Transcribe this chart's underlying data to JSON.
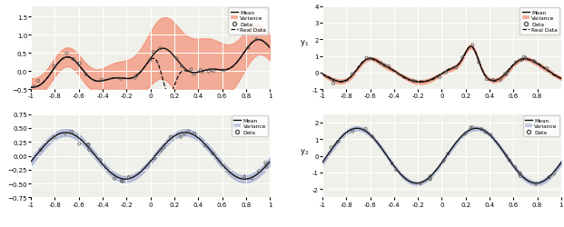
{
  "figsize": [
    6.21,
    2.51
  ],
  "dpi": 100,
  "salmon_color": "#F4866A",
  "salmon_alpha": 0.65,
  "blue_color": "#8090C8",
  "blue_alpha": 0.45,
  "mean_color": "#111111",
  "data_color": "#555555",
  "real_color": "#111111",
  "bg_color": "#f0f0ea",
  "grid_color": "#ffffff",
  "xlim": [
    -1,
    1
  ],
  "p0_ylim": [
    -0.5,
    1.8
  ],
  "p1_ylim": [
    -1,
    4
  ],
  "p2_ylim": [
    -0.75,
    0.75
  ],
  "p3_ylim": [
    -2.5,
    2.5
  ]
}
